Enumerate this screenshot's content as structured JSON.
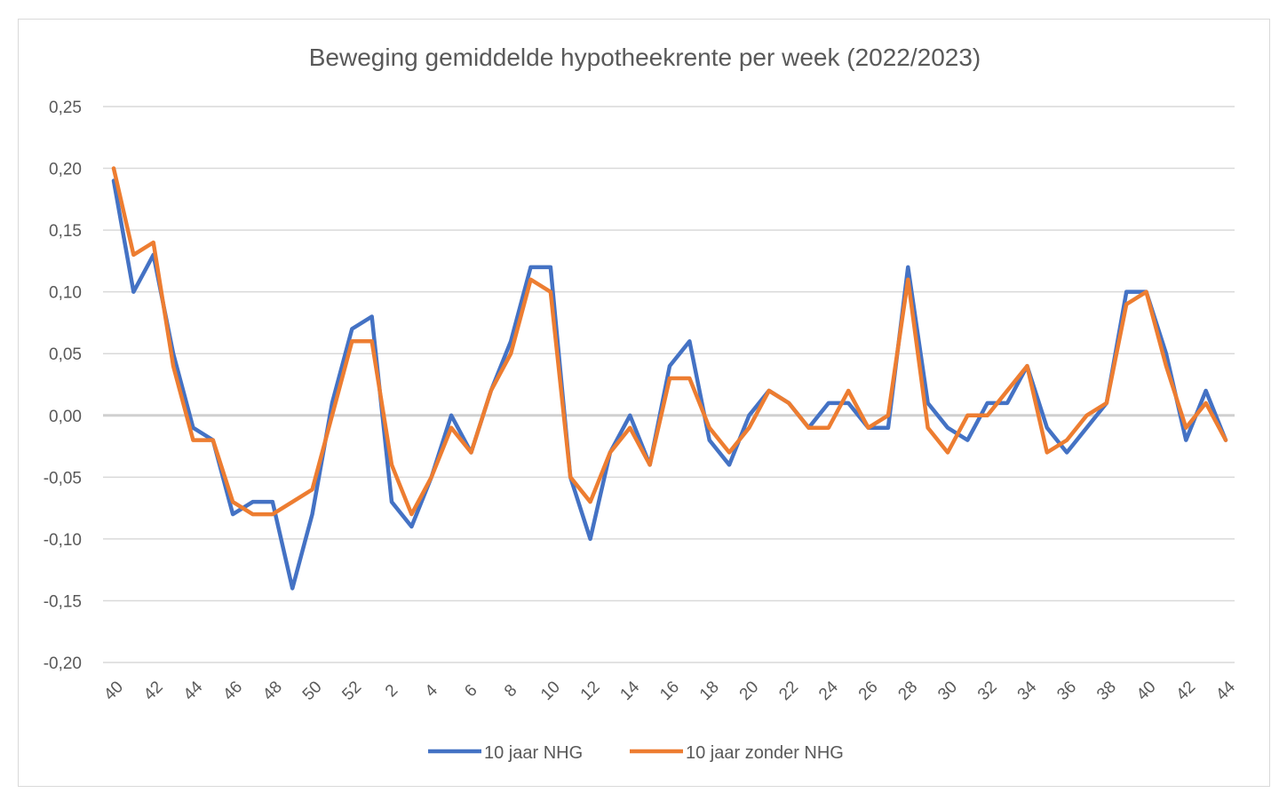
{
  "chart_data": {
    "type": "line",
    "title": "Beweging gemiddelde hypotheekrente per week (2022/2023)",
    "xlabel": "",
    "ylabel": "",
    "ylim": [
      -0.2,
      0.25
    ],
    "ytick_labels": [
      "-0,20",
      "-0,15",
      "-0,10",
      "-0,05",
      "0,00",
      "0,05",
      "0,10",
      "0,15",
      "0,20",
      "0,25"
    ],
    "ytick_values": [
      -0.2,
      -0.15,
      -0.1,
      -0.05,
      0.0,
      0.05,
      0.1,
      0.15,
      0.2,
      0.25
    ],
    "grid": true,
    "legend_position": "bottom",
    "x": [
      "40",
      "41",
      "42",
      "43",
      "44",
      "45",
      "46",
      "47",
      "48",
      "49",
      "50",
      "51",
      "52",
      "1",
      "2",
      "3",
      "4",
      "5",
      "6",
      "7",
      "8",
      "9",
      "10",
      "11",
      "12",
      "13",
      "14",
      "15",
      "16",
      "17",
      "18",
      "19",
      "20",
      "21",
      "22",
      "23",
      "24",
      "25",
      "26",
      "27",
      "28",
      "29",
      "30",
      "31",
      "32",
      "33",
      "34",
      "35",
      "36",
      "37",
      "38",
      "39",
      "40",
      "41",
      "42",
      "43",
      "44"
    ],
    "x_tick_labels": [
      "40",
      "42",
      "44",
      "46",
      "48",
      "50",
      "52",
      "2",
      "4",
      "6",
      "8",
      "10",
      "12",
      "14",
      "16",
      "18",
      "20",
      "22",
      "24",
      "26",
      "28",
      "30",
      "32",
      "34",
      "36",
      "38",
      "40",
      "42",
      "44"
    ],
    "series": [
      {
        "name": "10 jaar NHG",
        "color": "#4472c4",
        "values": [
          0.19,
          0.1,
          0.13,
          0.05,
          -0.01,
          -0.02,
          -0.08,
          -0.07,
          -0.07,
          -0.14,
          -0.08,
          0.01,
          0.07,
          0.08,
          -0.07,
          -0.09,
          -0.05,
          0.0,
          -0.03,
          0.02,
          0.06,
          0.12,
          0.12,
          -0.05,
          -0.1,
          -0.03,
          0.0,
          -0.04,
          0.04,
          0.06,
          -0.02,
          -0.04,
          0.0,
          0.02,
          0.01,
          -0.01,
          0.01,
          0.01,
          -0.01,
          -0.01,
          0.12,
          0.01,
          -0.01,
          -0.02,
          0.01,
          0.01,
          0.04,
          -0.01,
          -0.03,
          -0.01,
          0.01,
          0.1,
          0.1,
          0.05,
          -0.02,
          0.02,
          -0.02
        ]
      },
      {
        "name": "10 jaar zonder NHG",
        "color": "#ed7d31",
        "values": [
          0.2,
          0.13,
          0.14,
          0.04,
          -0.02,
          -0.02,
          -0.07,
          -0.08,
          -0.08,
          -0.07,
          -0.06,
          0.0,
          0.06,
          0.06,
          -0.04,
          -0.08,
          -0.05,
          -0.01,
          -0.03,
          0.02,
          0.05,
          0.11,
          0.1,
          -0.05,
          -0.07,
          -0.03,
          -0.01,
          -0.04,
          0.03,
          0.03,
          -0.01,
          -0.03,
          -0.01,
          0.02,
          0.01,
          -0.01,
          -0.01,
          0.02,
          -0.01,
          0.0,
          0.11,
          -0.01,
          -0.03,
          0.0,
          0.0,
          0.02,
          0.04,
          -0.03,
          -0.02,
          0.0,
          0.01,
          0.09,
          0.1,
          0.04,
          -0.01,
          0.01,
          -0.02
        ]
      }
    ]
  }
}
